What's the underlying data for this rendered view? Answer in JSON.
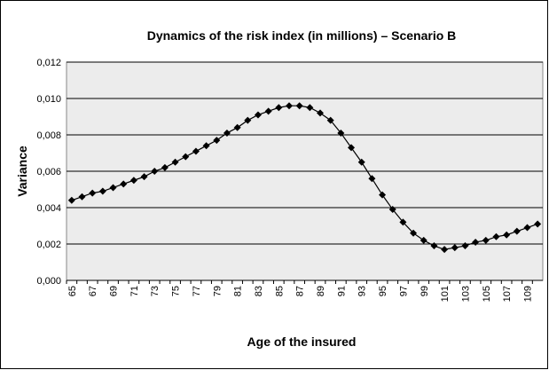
{
  "chart_data": {
    "type": "line",
    "title": "Dynamics of the risk index (in millions) – Scenario B",
    "x_label": "Age of the insured",
    "y_label": "Variance",
    "categories": [
      "65",
      null,
      "67",
      null,
      "69",
      null,
      "71",
      null,
      "73",
      null,
      "75",
      null,
      "77",
      null,
      "79",
      null,
      "81",
      null,
      "83",
      null,
      "85",
      null,
      "87",
      null,
      "89",
      null,
      "91",
      null,
      "93",
      null,
      "95",
      null,
      "97",
      null,
      "99",
      null,
      "101",
      null,
      "103",
      null,
      "105",
      null,
      "107",
      null,
      "109",
      null
    ],
    "series": [
      {
        "name": "Variance",
        "color": "#000000",
        "values": [
          0.0044,
          0.0046,
          0.0048,
          0.0049,
          0.0051,
          0.0053,
          0.0055,
          0.0057,
          0.006,
          0.0062,
          0.0065,
          0.0068,
          0.0071,
          0.0074,
          0.0077,
          0.0081,
          0.0084,
          0.0088,
          0.0091,
          0.0093,
          0.0095,
          0.0096,
          0.0096,
          0.0095,
          0.0092,
          0.0088,
          0.0081,
          0.0073,
          0.0065,
          0.0056,
          0.0047,
          0.0039,
          0.0032,
          0.0026,
          0.0022,
          0.0019,
          0.0017,
          0.0018,
          0.0019,
          0.0021,
          0.0022,
          0.0024,
          0.0025,
          0.0027,
          0.0029,
          0.0031
        ]
      }
    ],
    "ylim": [
      0,
      0.012
    ],
    "yticks": [
      {
        "value": 0,
        "label": "0,000"
      },
      {
        "value": 0.002,
        "label": "0,002"
      },
      {
        "value": 0.004,
        "label": "0,004"
      },
      {
        "value": 0.006,
        "label": "0,006"
      },
      {
        "value": 0.008,
        "label": "0,008"
      },
      {
        "value": 0.01,
        "label": "0,010"
      },
      {
        "value": 0.012,
        "label": "0,012"
      }
    ],
    "grid": true
  }
}
